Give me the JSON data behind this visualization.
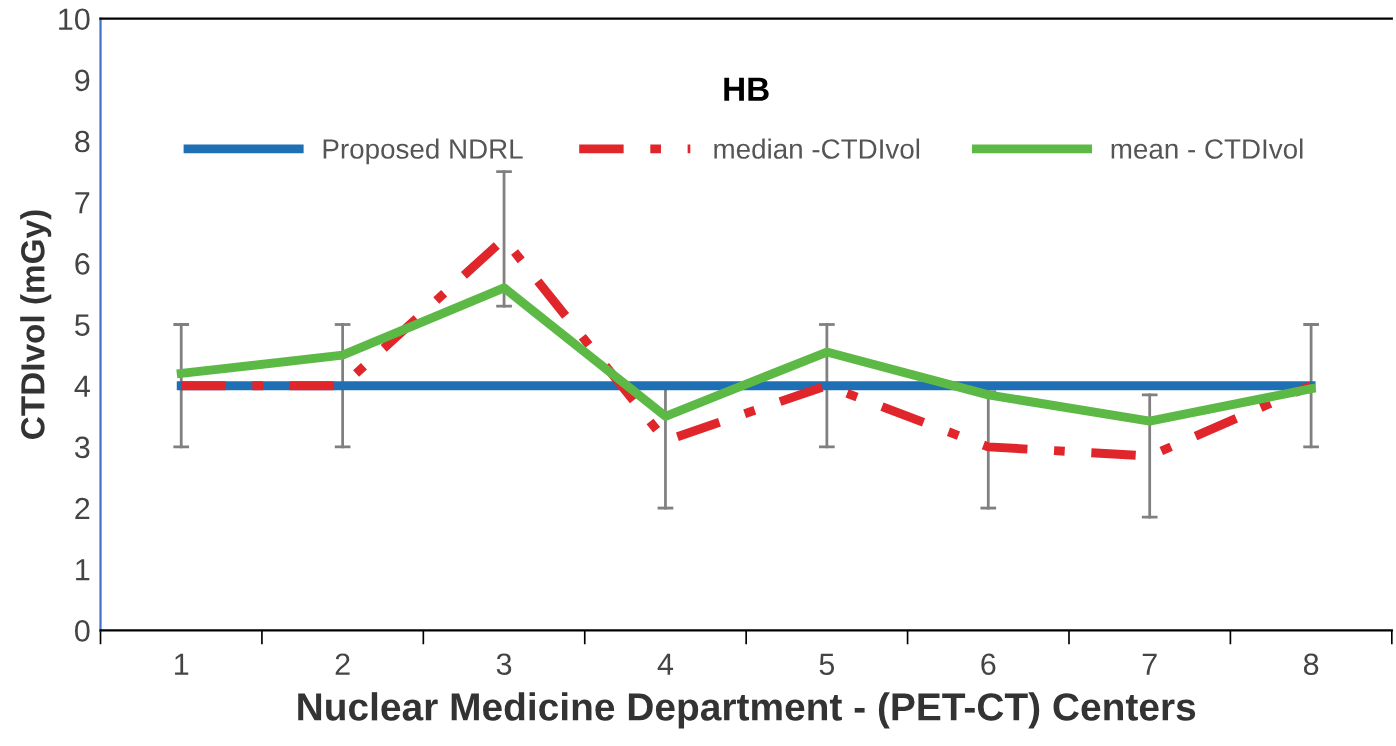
{
  "chart_data": {
    "type": "line",
    "title": "HB",
    "xlabel": "Nuclear Medicine Department - (PET-CT) Centers",
    "ylabel": "CTDIvol (mGy)",
    "categories": [
      "1",
      "2",
      "3",
      "4",
      "5",
      "6",
      "7",
      "8"
    ],
    "series": [
      {
        "name": "Proposed NDRL",
        "color": "#1f6fb5",
        "values": [
          4,
          4,
          4,
          4,
          4,
          4,
          4,
          4
        ],
        "line_style": "solid"
      },
      {
        "name": "median -CTDIvol",
        "color": "#e0252b",
        "values": [
          4,
          4,
          6.4,
          3.1,
          4,
          3.0,
          2.85,
          4.0
        ],
        "line_style": "dashdot",
        "errors": [
          [
            3,
            5
          ],
          [
            3,
            5
          ],
          [
            5.3,
            7.5
          ],
          [
            2,
            4
          ],
          [
            3,
            5
          ],
          [
            2,
            3.9
          ],
          [
            1.85,
            3.85
          ],
          [
            3,
            5
          ]
        ]
      },
      {
        "name": "mean - CTDIvol",
        "color": "#5cb946",
        "values": [
          4.2,
          4.5,
          5.6,
          3.5,
          4.55,
          3.85,
          3.42,
          3.95
        ],
        "line_style": "solid"
      }
    ],
    "ylim": [
      0,
      10
    ],
    "yticks": [
      0,
      1,
      2,
      3,
      4,
      5,
      6,
      7,
      8,
      9,
      10
    ],
    "grid": false,
    "legend": "top",
    "marker": "none"
  }
}
